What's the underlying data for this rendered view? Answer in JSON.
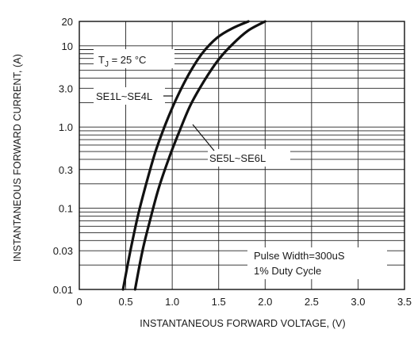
{
  "chart_data": {
    "type": "line",
    "xlabel": "INSTANTANEOUS FORWARD VOLTAGE, (V)",
    "ylabel": "INSTANTANEOUS FORWARD CURRENT, (A)",
    "xlim": [
      0,
      3.5
    ],
    "ylim": [
      0.01,
      20
    ],
    "y_scale": "log",
    "grid": true,
    "x_ticks": [
      {
        "value": 0,
        "label": "0"
      },
      {
        "value": 0.5,
        "label": "0.5"
      },
      {
        "value": 1.0,
        "label": "1.0"
      },
      {
        "value": 1.5,
        "label": "1.5"
      },
      {
        "value": 2.0,
        "label": "2.0"
      },
      {
        "value": 2.5,
        "label": "2.5"
      },
      {
        "value": 3.0,
        "label": "3.0"
      },
      {
        "value": 3.5,
        "label": "3.5"
      }
    ],
    "y_ticks": [
      {
        "value": 0.01,
        "label": "0.01"
      },
      {
        "value": 0.03,
        "label": "0.03"
      },
      {
        "value": 0.1,
        "label": "0.1"
      },
      {
        "value": 0.3,
        "label": "0.3"
      },
      {
        "value": 1.0,
        "label": "1.0"
      },
      {
        "value": 3.0,
        "label": "3.0"
      },
      {
        "value": 10,
        "label": "10"
      },
      {
        "value": 20,
        "label": "20"
      }
    ],
    "series": [
      {
        "name": "SE1L~SE4L",
        "x": [
          0.47,
          0.55,
          0.63,
          0.72,
          0.82,
          0.93,
          1.05,
          1.18,
          1.32,
          1.48,
          1.65,
          1.82
        ],
        "y": [
          0.01,
          0.03,
          0.08,
          0.2,
          0.5,
          1.1,
          2.3,
          4.5,
          8.0,
          12.5,
          16.5,
          20
        ]
      },
      {
        "name": "SE5L~SE6L",
        "x": [
          0.6,
          0.68,
          0.76,
          0.85,
          0.96,
          1.08,
          1.2,
          1.35,
          1.5,
          1.65,
          1.82,
          2.0
        ],
        "y": [
          0.01,
          0.03,
          0.07,
          0.17,
          0.4,
          0.9,
          1.9,
          3.8,
          6.8,
          10.5,
          15.5,
          20
        ]
      }
    ],
    "annotations": {
      "temperature_prefix": "T",
      "temperature_subscript": "J",
      "temperature_value": " = 25 °C",
      "series_label_1": "SE1L~SE4L",
      "series_label_2": "SE5L~SE6L",
      "pulse_line_1": "Pulse Width=300uS",
      "pulse_line_2": "1% Duty Cycle"
    }
  }
}
